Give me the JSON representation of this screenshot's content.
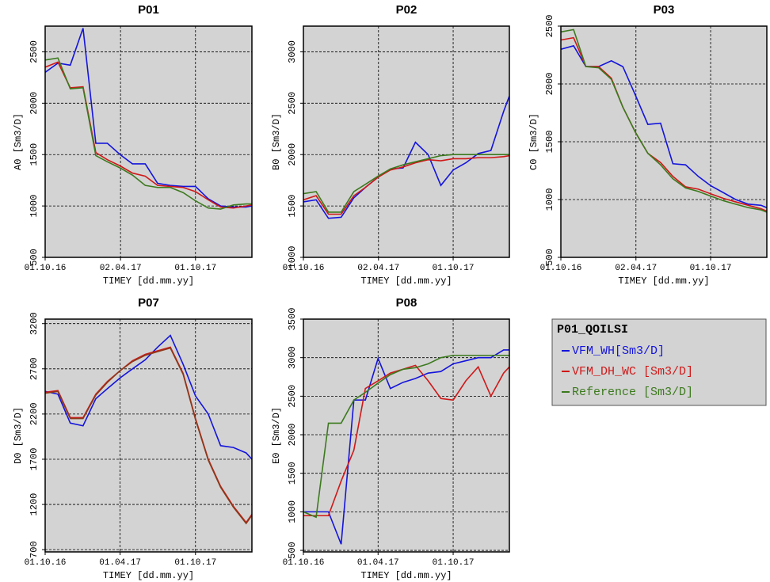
{
  "chart_data": [
    {
      "type": "line",
      "title": "P01",
      "xlabel": "TIMEY [dd.mm.yy]",
      "ylabel": "A0 [Sm3/D]",
      "x": [
        "01.10.16",
        "01.11.16",
        "01.12.16",
        "01.01.17",
        "01.02.17",
        "01.03.17",
        "01.04.17",
        "01.05.17",
        "01.06.17",
        "01.07.17",
        "01.08.17",
        "01.09.17",
        "01.10.17",
        "01.11.17",
        "01.12.17",
        "01.01.18",
        "01.02.18",
        "15.02.18"
      ],
      "xlim": [
        "01.10.16",
        "15.02.18"
      ],
      "xticks": [
        "01.10.16",
        "02.04.17",
        "01.10.17"
      ],
      "ylim": [
        500,
        2750
      ],
      "yticks": [
        500,
        1000,
        1500,
        2000,
        2500
      ],
      "grid": true,
      "series": [
        {
          "color": "#1414dc",
          "values": [
            2300,
            2390,
            2370,
            2730,
            1610,
            1610,
            1500,
            1410,
            1410,
            1220,
            1200,
            1190,
            1190,
            1070,
            1000,
            990,
            990,
            1000
          ]
        },
        {
          "color": "#d01818",
          "values": [
            2350,
            2400,
            2150,
            2160,
            1520,
            1450,
            1390,
            1320,
            1290,
            1200,
            1190,
            1180,
            1140,
            1060,
            990,
            980,
            1000,
            1010
          ]
        },
        {
          "color": "#3c7a1e",
          "values": [
            2420,
            2440,
            2140,
            2150,
            1490,
            1430,
            1370,
            1300,
            1200,
            1180,
            1180,
            1130,
            1050,
            980,
            970,
            1010,
            1020,
            1020
          ]
        }
      ]
    },
    {
      "type": "line",
      "title": "P02",
      "xlabel": "TIMEY [dd.mm.yy]",
      "ylabel": "B0 [Sm3/D]",
      "x": [
        "01.10.16",
        "01.11.16",
        "01.12.16",
        "01.01.17",
        "01.02.17",
        "01.03.17",
        "01.04.17",
        "01.05.17",
        "01.06.17",
        "01.07.17",
        "01.08.17",
        "01.09.17",
        "01.10.17",
        "01.11.17",
        "01.12.17",
        "01.01.18",
        "01.02.18",
        "15.02.18"
      ],
      "xlim": [
        "01.10.16",
        "15.02.18"
      ],
      "xticks": [
        "01.10.16",
        "02.04.17",
        "01.10.17"
      ],
      "ylim": [
        1000,
        3250
      ],
      "yticks": [
        1000,
        1500,
        2000,
        2500,
        3000
      ],
      "grid": true,
      "series": [
        {
          "color": "#1414dc",
          "values": [
            1540,
            1560,
            1380,
            1390,
            1580,
            1680,
            1780,
            1860,
            1870,
            2120,
            2000,
            1700,
            1850,
            1920,
            2010,
            2040,
            2420,
            2570
          ]
        },
        {
          "color": "#d01818",
          "values": [
            1560,
            1600,
            1420,
            1420,
            1600,
            1680,
            1780,
            1850,
            1880,
            1920,
            1950,
            1940,
            1960,
            1960,
            1970,
            1970,
            1980,
            1990
          ]
        },
        {
          "color": "#3c7a1e",
          "values": [
            1620,
            1640,
            1440,
            1440,
            1640,
            1710,
            1790,
            1860,
            1900,
            1930,
            1960,
            1990,
            2000,
            2000,
            2000,
            2000,
            2000,
            2000
          ]
        }
      ]
    },
    {
      "type": "line",
      "title": "P03",
      "xlabel": "TIMEY [dd.mm.yy]",
      "ylabel": "C0 [Sm3/D]",
      "x": [
        "01.10.16",
        "01.11.16",
        "01.12.16",
        "01.01.17",
        "01.02.17",
        "01.03.17",
        "01.04.17",
        "01.05.17",
        "01.06.17",
        "01.07.17",
        "01.08.17",
        "01.09.17",
        "01.10.17",
        "01.11.17",
        "01.12.17",
        "01.01.18",
        "01.02.18",
        "15.02.18"
      ],
      "xlim": [
        "01.10.16",
        "15.02.18"
      ],
      "xticks": [
        "01.10.16",
        "02.04.17",
        "01.10.17"
      ],
      "ylim": [
        500,
        2500
      ],
      "yticks": [
        500,
        1000,
        1500,
        2000,
        2500
      ],
      "grid": true,
      "series": [
        {
          "color": "#1414dc",
          "values": [
            2300,
            2330,
            2150,
            2150,
            2200,
            2150,
            1900,
            1650,
            1660,
            1310,
            1300,
            1200,
            1120,
            1060,
            1000,
            960,
            950,
            930
          ]
        },
        {
          "color": "#d01818",
          "values": [
            2380,
            2400,
            2150,
            2150,
            2050,
            1800,
            1580,
            1400,
            1320,
            1200,
            1110,
            1090,
            1050,
            1010,
            980,
            950,
            920,
            900
          ]
        },
        {
          "color": "#3c7a1e",
          "values": [
            2450,
            2470,
            2150,
            2140,
            2040,
            1800,
            1580,
            1400,
            1300,
            1180,
            1100,
            1070,
            1030,
            990,
            960,
            930,
            910,
            890
          ]
        }
      ]
    },
    {
      "type": "line",
      "title": "P07",
      "xlabel": "TIMEY [dd.mm.yy]",
      "ylabel": "D0 [Sm3/D]",
      "x": [
        "01.10.16",
        "01.11.16",
        "01.12.16",
        "01.01.17",
        "01.02.17",
        "01.03.17",
        "01.04.17",
        "01.05.17",
        "01.06.17",
        "01.07.17",
        "01.08.17",
        "01.09.17",
        "01.10.17",
        "01.11.17",
        "01.12.17",
        "01.01.18",
        "01.02.18",
        "15.02.18"
      ],
      "xlim": [
        "01.10.16",
        "15.02.18"
      ],
      "xticks": [
        "01.10.16",
        "01.04.17",
        "01.10.17"
      ],
      "ylim": [
        675,
        3250
      ],
      "yticks": [
        700,
        1200,
        1700,
        2200,
        2700,
        3200
      ],
      "grid": true,
      "series": [
        {
          "color": "#1414dc",
          "values": [
            2450,
            2420,
            2100,
            2070,
            2370,
            2480,
            2600,
            2700,
            2800,
            2940,
            3070,
            2750,
            2400,
            2200,
            1850,
            1830,
            1770,
            1700
          ]
        },
        {
          "color": "#d01818",
          "values": [
            2440,
            2460,
            2160,
            2160,
            2420,
            2560,
            2680,
            2790,
            2860,
            2900,
            2940,
            2650,
            2150,
            1700,
            1400,
            1180,
            1000,
            1090
          ]
        },
        {
          "color": "#8a3a1a",
          "values": [
            2430,
            2450,
            2150,
            2150,
            2410,
            2550,
            2680,
            2780,
            2850,
            2890,
            2930,
            2640,
            2140,
            1690,
            1390,
            1170,
            990,
            1080
          ]
        }
      ]
    },
    {
      "type": "line",
      "title": "P08",
      "xlabel": "TIMEY [dd.mm.yy]",
      "ylabel": "E0 [Sm3/D]",
      "x": [
        "01.10.16",
        "01.11.16",
        "01.12.16",
        "01.01.17",
        "01.02.17",
        "01.03.17",
        "01.04.17",
        "01.05.17",
        "01.06.17",
        "01.07.17",
        "01.08.17",
        "01.09.17",
        "01.10.17",
        "01.11.17",
        "01.12.17",
        "01.01.18",
        "01.02.18",
        "15.02.18"
      ],
      "xlim": [
        "01.10.16",
        "15.02.18"
      ],
      "xticks": [
        "01.10.16",
        "01.04.17",
        "01.10.17"
      ],
      "ylim": [
        480,
        3500
      ],
      "yticks": [
        500,
        1000,
        1500,
        2000,
        2500,
        3000,
        3500
      ],
      "grid": true,
      "series": [
        {
          "color": "#1414dc",
          "values": [
            1000,
            1000,
            1000,
            580,
            2450,
            2450,
            2990,
            2600,
            2680,
            2730,
            2800,
            2820,
            2920,
            2960,
            3000,
            3000,
            3100,
            3100
          ]
        },
        {
          "color": "#d01818",
          "values": [
            950,
            950,
            950,
            1400,
            1800,
            2600,
            2700,
            2800,
            2850,
            2900,
            2700,
            2470,
            2450,
            2700,
            2880,
            2500,
            2800,
            2880
          ]
        },
        {
          "color": "#3c7a1e",
          "values": [
            1000,
            930,
            2150,
            2150,
            2450,
            2550,
            2670,
            2780,
            2850,
            2870,
            2920,
            3000,
            3030,
            3030,
            3030,
            3030,
            3030,
            3030
          ]
        }
      ]
    }
  ],
  "legend": {
    "title": "P01_QOILSI",
    "items": [
      {
        "name": "VFM_WH[Sm3/D]",
        "color": "#1414dc"
      },
      {
        "name": "VFM_DH_WC [Sm3/D]",
        "color": "#d01818"
      },
      {
        "name": "Reference [Sm3/D]",
        "color": "#3c7a1e"
      }
    ]
  }
}
